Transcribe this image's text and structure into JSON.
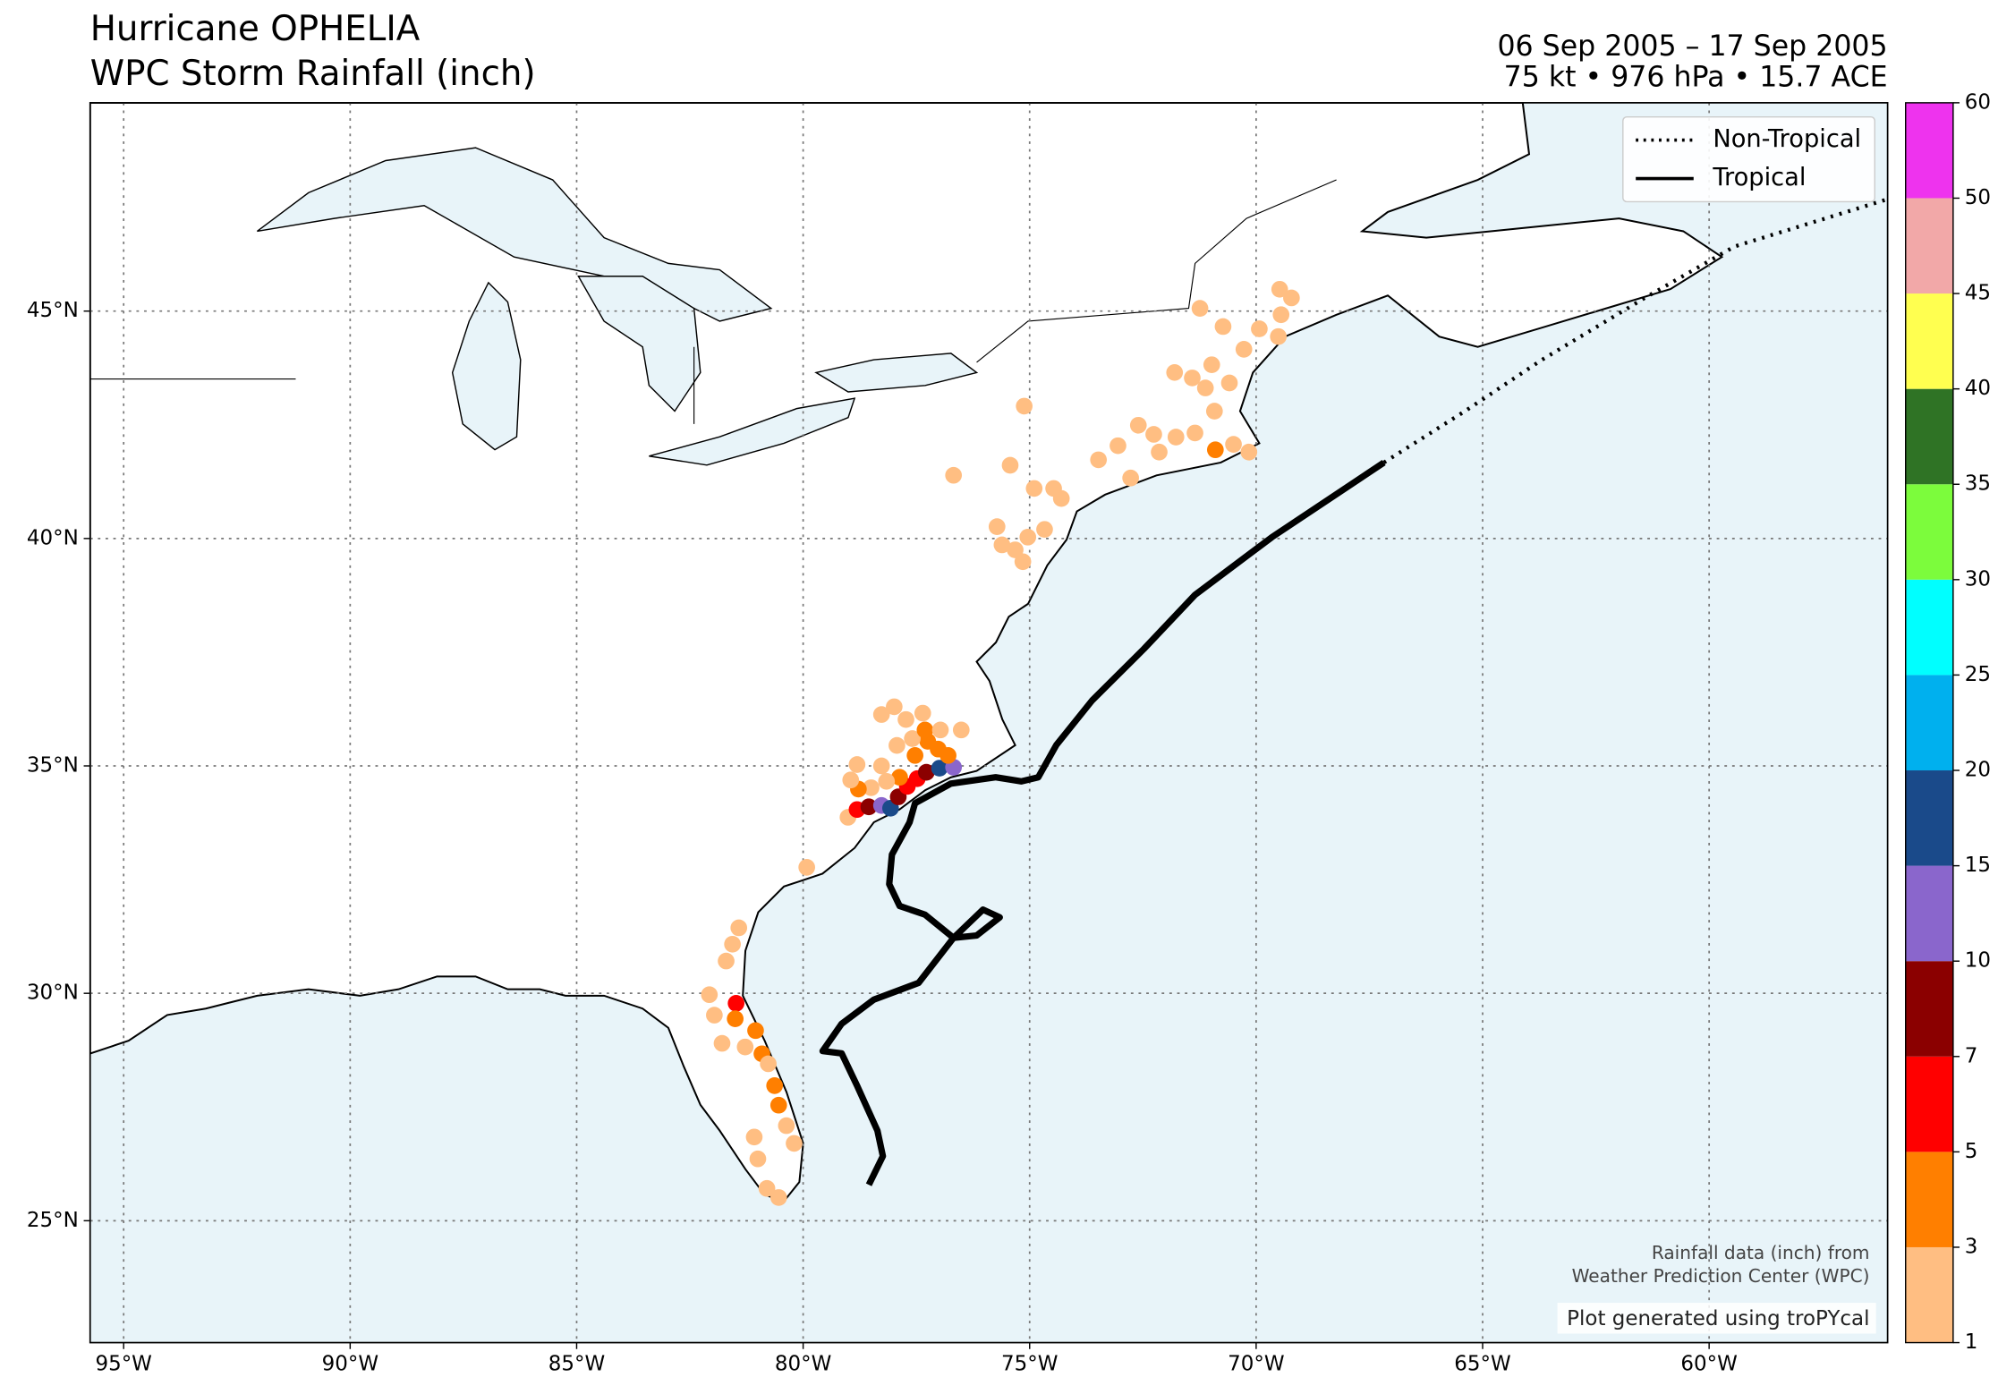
{
  "chart_data": {
    "type": "map",
    "title": "Hurricane OPHELIA",
    "subtitle": "WPC Storm Rainfall (inch)",
    "date_range": "06 Sep 2005 – 17 Sep 2005",
    "intensity_summary": "75 kt • 976 hPa • 15.7 ACE",
    "annotations": [
      "Rainfall data (inch) from",
      "Weather Prediction Center (WPC)",
      "Plot generated using troPYcal"
    ],
    "xlim": [
      -95.74,
      -56.06
    ],
    "ylim": [
      22.32,
      49.58
    ],
    "xticks": [
      {
        "value": -95,
        "label": "95°W"
      },
      {
        "value": -90,
        "label": "90°W"
      },
      {
        "value": -85,
        "label": "85°W"
      },
      {
        "value": -80,
        "label": "80°W"
      },
      {
        "value": -75,
        "label": "75°W"
      },
      {
        "value": -70,
        "label": "70°W"
      },
      {
        "value": -65,
        "label": "65°W"
      },
      {
        "value": -60,
        "label": "60°W"
      }
    ],
    "yticks": [
      {
        "value": 25,
        "label": "25°N"
      },
      {
        "value": 30,
        "label": "30°N"
      },
      {
        "value": 35,
        "label": "35°N"
      },
      {
        "value": 40,
        "label": "40°N"
      },
      {
        "value": 45,
        "label": "45°N"
      }
    ],
    "grid": true,
    "legend": "upper right",
    "series": [
      {
        "name": "Non-Tropical",
        "color": "#000000",
        "style": "dotted",
        "x": [
          -67.18,
          -65.39,
          -63.69,
          -61.42,
          -59.44,
          -56.06
        ],
        "values": [
          41.67,
          42.8,
          43.93,
          45.29,
          46.42,
          47.46
        ]
      },
      {
        "name": "Tropical",
        "color": "#000000",
        "style": "solid",
        "x": [
          -78.55,
          -78.24,
          -78.36,
          -78.81,
          -79.15,
          -79.57,
          -79.15,
          -78.44,
          -77.45,
          -76.68,
          -76.03,
          -75.66,
          -76.17,
          -76.68,
          -77.31,
          -77.87,
          -78.1,
          -78.04,
          -77.65,
          -77.53,
          -76.74,
          -75.75,
          -75.18,
          -74.81,
          -74.41,
          -73.62,
          -72.48,
          -71.35,
          -69.65,
          -67.18
        ],
        "values": [
          25.79,
          26.42,
          26.98,
          27.97,
          28.68,
          28.73,
          29.33,
          29.86,
          30.23,
          31.22,
          31.84,
          31.67,
          31.27,
          31.22,
          31.73,
          31.92,
          32.4,
          33.05,
          33.76,
          34.18,
          34.61,
          34.75,
          34.66,
          34.75,
          35.46,
          36.44,
          37.57,
          38.76,
          40.03,
          41.67
        ]
      }
    ],
    "rainfall": {
      "x": [
        -81.42,
        -81.56,
        -81.7,
        -82.07,
        -81.96,
        -81.79,
        -81.48,
        -81.5,
        -81.05,
        -81.28,
        -80.91,
        -80.77,
        -80.63,
        -80.54,
        -80.37,
        -80.2,
        -81.08,
        -81.0,
        -80.8,
        -80.54,
        -79.92,
        -79.01,
        -78.81,
        -78.55,
        -78.27,
        -78.07,
        -77.9,
        -77.7,
        -77.48,
        -77.28,
        -76.99,
        -76.68,
        -76.8,
        -77.02,
        -77.25,
        -77.53,
        -77.87,
        -78.16,
        -78.5,
        -78.78,
        -78.95,
        -78.81,
        -78.27,
        -77.93,
        -77.59,
        -77.31,
        -76.97,
        -76.51,
        -77.73,
        -77.36,
        -77.99,
        -78.27,
        -76.68,
        -75.12,
        -75.43,
        -74.9,
        -74.47,
        -74.3,
        -74.67,
        -75.04,
        -75.32,
        -75.15,
        -75.72,
        -75.61,
        -73.48,
        -73.05,
        -72.6,
        -72.26,
        -72.14,
        -71.77,
        -71.35,
        -70.9,
        -70.5,
        -70.16,
        -70.92,
        -71.8,
        -71.41,
        -71.12,
        -70.98,
        -70.59,
        -70.27,
        -69.93,
        -69.51,
        -69.45,
        -69.22,
        -69.48,
        -70.73,
        -71.24,
        -72.77
      ],
      "y": [
        31.44,
        31.08,
        30.71,
        29.97,
        29.52,
        28.9,
        29.78,
        29.44,
        29.18,
        28.82,
        28.67,
        28.45,
        27.97,
        27.54,
        27.09,
        26.7,
        26.84,
        26.36,
        25.71,
        25.51,
        32.77,
        33.87,
        34.04,
        34.1,
        34.13,
        34.07,
        34.32,
        34.55,
        34.72,
        34.86,
        34.95,
        34.97,
        35.23,
        35.37,
        35.54,
        35.23,
        34.75,
        34.66,
        34.52,
        34.49,
        34.69,
        35.03,
        35.0,
        35.45,
        35.6,
        35.79,
        35.79,
        35.79,
        36.02,
        36.16,
        36.3,
        36.13,
        41.39,
        42.91,
        41.61,
        41.1,
        41.1,
        40.88,
        40.2,
        40.03,
        39.75,
        39.49,
        40.26,
        39.86,
        41.73,
        42.04,
        42.49,
        42.29,
        41.9,
        42.23,
        42.32,
        41.95,
        42.07,
        41.9,
        42.8,
        43.65,
        43.53,
        43.31,
        43.82,
        43.42,
        44.16,
        44.61,
        44.44,
        44.92,
        45.29,
        45.48,
        44.66,
        45.06,
        41.33
      ],
      "values": [
        2,
        2,
        2,
        2,
        2,
        2,
        6,
        4,
        4,
        2,
        4,
        2,
        4,
        4,
        2,
        2,
        2,
        2,
        2,
        2,
        2,
        2,
        6,
        8,
        12,
        17,
        8,
        6,
        6,
        8,
        17,
        12,
        4,
        4,
        4,
        4,
        4,
        2,
        2,
        4,
        2,
        2,
        2,
        2,
        2,
        4,
        2,
        2,
        2,
        2,
        2,
        2,
        2,
        2,
        2,
        2,
        2,
        2,
        2,
        2,
        2,
        2,
        2,
        2,
        2,
        2,
        2,
        2,
        2,
        2,
        2,
        4,
        2,
        2,
        2,
        2,
        2,
        2,
        2,
        2,
        2,
        2,
        2,
        2,
        2,
        2,
        2,
        2,
        2
      ]
    },
    "colorbar": {
      "levels": [
        1,
        3,
        5,
        7,
        10,
        15,
        20,
        25,
        30,
        35,
        40,
        45,
        50,
        60
      ],
      "colors": [
        "#ffbe82",
        "#ff7f00",
        "#ff0000",
        "#8b0000",
        "#8a66cc",
        "#1a4a8a",
        "#00b0ee",
        "#00ffff",
        "#7cfc3c",
        "#2f7325",
        "#ffff50",
        "#f2a8a8",
        "#ee33ee"
      ]
    }
  }
}
